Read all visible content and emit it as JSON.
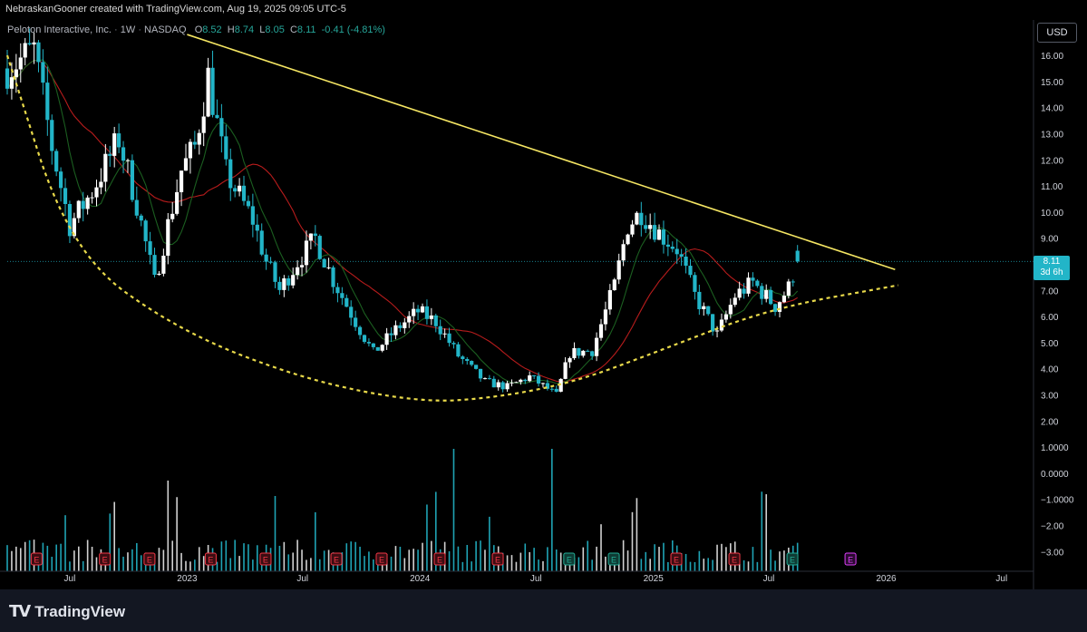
{
  "header": {
    "attribution": "NebraskanGooner created with TradingView.com, Aug 19, 2025 09:05 UTC-5",
    "symbol_name": "Peloton Interactive, Inc.",
    "interval": "1W",
    "exchange": "NASDAQ",
    "open_label": "O",
    "open": "8.52",
    "high_label": "H",
    "high": "8.74",
    "low_label": "L",
    "low": "8.05",
    "close_label": "C",
    "close": "8.11",
    "change": "-0.41 (-4.81%)"
  },
  "currency_button": "USD",
  "price_badge": {
    "price": "8.11",
    "countdown": "3d 6h"
  },
  "footer": {
    "logo_text": "TradingView",
    "logo_icon": "tradingview-logo-icon"
  },
  "colors": {
    "background": "#000000",
    "up_candle": "#ffffff",
    "down_candle": "#22b5c8",
    "trendline": "#f5e663",
    "cup_curve": "#e8d94a",
    "ma_fast": "#1b5e20",
    "ma_slow": "#b71c1c",
    "earnings_red": "#f23645",
    "earnings_green": "#22ab94",
    "future_event": "#e040fb"
  },
  "chart_data": {
    "type": "candlestick",
    "y_ticks": [
      "16.00",
      "15.00",
      "14.00",
      "13.00",
      "12.00",
      "11.00",
      "10.00",
      "9.00",
      "8.00",
      "7.00",
      "6.00",
      "5.00",
      "4.00",
      "3.00",
      "2.00",
      "1.0000",
      "0.0000",
      "−1.0000",
      "−2.00",
      "−3.00"
    ],
    "x_ticks": [
      "Jul",
      "2023",
      "Jul",
      "2024",
      "Jul",
      "2025",
      "Jul",
      "2026",
      "Jul"
    ],
    "x_tick_dates": [
      "2022-07-01",
      "2023-01-01",
      "2023-07-01",
      "2024-01-01",
      "2024-07-01",
      "2025-01-01",
      "2025-07-01",
      "2026-01-01",
      "2026-07-01"
    ],
    "xlim": [
      "2022-03-25",
      "2026-08-20"
    ],
    "ylim": [
      -3.5,
      17.0
    ],
    "last_price": 8.11,
    "price_anchors": [
      [
        "2022-03-25",
        15.5
      ],
      [
        "2022-05-06",
        16.2
      ],
      [
        "2022-06-03",
        12.5
      ],
      [
        "2022-07-01",
        9.5
      ],
      [
        "2022-08-05",
        10.8
      ],
      [
        "2022-09-16",
        12.8
      ],
      [
        "2022-10-14",
        10.3
      ],
      [
        "2022-11-11",
        7.3
      ],
      [
        "2022-12-02",
        9.5
      ],
      [
        "2022-12-23",
        11.6
      ],
      [
        "2023-01-13",
        12.5
      ],
      [
        "2023-02-03",
        15.2
      ],
      [
        "2023-03-03",
        11.5
      ],
      [
        "2023-04-14",
        9.7
      ],
      [
        "2023-05-05",
        8.1
      ],
      [
        "2023-05-26",
        7.0
      ],
      [
        "2023-06-23",
        8.1
      ],
      [
        "2023-07-21",
        9.0
      ],
      [
        "2023-08-18",
        7.4
      ],
      [
        "2023-09-22",
        5.8
      ],
      [
        "2023-10-20",
        4.6
      ],
      [
        "2023-11-24",
        5.5
      ],
      [
        "2023-12-29",
        6.2
      ],
      [
        "2024-01-26",
        5.8
      ],
      [
        "2024-03-01",
        4.5
      ],
      [
        "2024-04-12",
        3.5
      ],
      [
        "2024-05-17",
        3.3
      ],
      [
        "2024-06-21",
        3.7
      ],
      [
        "2024-08-02",
        3.0
      ],
      [
        "2024-08-23",
        4.6
      ],
      [
        "2024-09-27",
        4.7
      ],
      [
        "2024-11-01",
        7.2
      ],
      [
        "2024-11-22",
        9.5
      ],
      [
        "2024-12-13",
        10.0
      ],
      [
        "2025-01-10",
        9.2
      ],
      [
        "2025-02-07",
        8.6
      ],
      [
        "2025-03-07",
        6.8
      ],
      [
        "2025-04-11",
        5.3
      ],
      [
        "2025-05-09",
        6.8
      ],
      [
        "2025-06-06",
        7.3
      ],
      [
        "2025-07-11",
        6.4
      ],
      [
        "2025-08-01",
        7.1
      ],
      [
        "2025-08-15",
        8.11
      ]
    ],
    "trendline": [
      [
        "2023-01-01",
        16.8
      ],
      [
        "2026-01-15",
        7.8
      ]
    ],
    "cup_curve_points": [
      [
        "2022-03-25",
        16.0
      ],
      [
        "2022-07-01",
        8.5
      ],
      [
        "2022-12-15",
        5.5
      ],
      [
        "2023-07-01",
        3.6
      ],
      [
        "2024-01-01",
        2.7
      ],
      [
        "2024-05-01",
        2.9
      ],
      [
        "2024-09-01",
        3.5
      ],
      [
        "2025-01-01",
        4.6
      ],
      [
        "2025-07-01",
        6.3
      ],
      [
        "2026-01-20",
        7.2
      ]
    ],
    "earnings_markers": [
      {
        "date": "2022-05-10",
        "label": "E",
        "result": "miss"
      },
      {
        "date": "2022-08-25",
        "label": "E",
        "result": "miss"
      },
      {
        "date": "2022-11-03",
        "label": "E",
        "result": "miss"
      },
      {
        "date": "2023-02-07",
        "label": "E",
        "result": "miss"
      },
      {
        "date": "2023-05-04",
        "label": "E",
        "result": "miss"
      },
      {
        "date": "2023-08-23",
        "label": "E",
        "result": "miss"
      },
      {
        "date": "2023-11-02",
        "label": "E",
        "result": "miss"
      },
      {
        "date": "2024-02-01",
        "label": "E",
        "result": "miss"
      },
      {
        "date": "2024-05-02",
        "label": "E",
        "result": "miss"
      },
      {
        "date": "2024-08-22",
        "label": "E",
        "result": "beat"
      },
      {
        "date": "2024-10-31",
        "label": "E",
        "result": "beat"
      },
      {
        "date": "2025-02-06",
        "label": "E",
        "result": "miss"
      },
      {
        "date": "2025-05-08",
        "label": "E",
        "result": "miss"
      },
      {
        "date": "2025-08-07",
        "label": "E",
        "result": "beat"
      },
      {
        "date": "2025-11-06",
        "label": "E",
        "result": "upcoming"
      }
    ]
  }
}
